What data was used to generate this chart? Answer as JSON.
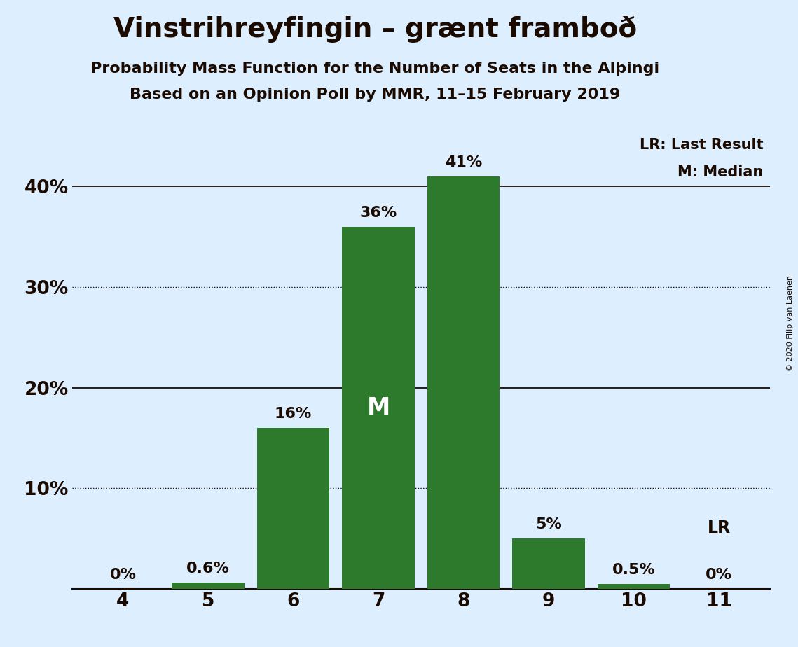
{
  "title": "Vinstrihreyfingin – grænt framboð",
  "subtitle1": "Probability Mass Function for the Number of Seats in the Alþingi",
  "subtitle2": "Based on an Opinion Poll by MMR, 11–15 February 2019",
  "copyright": "© 2020 Filip van Laenen",
  "seats": [
    4,
    5,
    6,
    7,
    8,
    9,
    10,
    11
  ],
  "probabilities": [
    0.0,
    0.6,
    16.0,
    36.0,
    41.0,
    5.0,
    0.5,
    0.0
  ],
  "labels": [
    "0%",
    "0.6%",
    "16%",
    "36%",
    "41%",
    "5%",
    "0.5%",
    "0%"
  ],
  "bar_color": "#2d7a2d",
  "background_color": "#ddeeff",
  "text_color": "#1a0a00",
  "median_seat": 7,
  "last_result_seat": 11,
  "ylim": [
    0,
    46
  ],
  "yticks": [
    0,
    10,
    20,
    30,
    40
  ],
  "ytick_labels": [
    "",
    "10%",
    "20%",
    "30%",
    "40%"
  ],
  "solid_gridlines": [
    0,
    20,
    40
  ],
  "dotted_gridlines": [
    10,
    30
  ],
  "legend_lr": "LR: Last Result",
  "legend_m": "M: Median",
  "lr_label": "LR",
  "m_label": "M"
}
